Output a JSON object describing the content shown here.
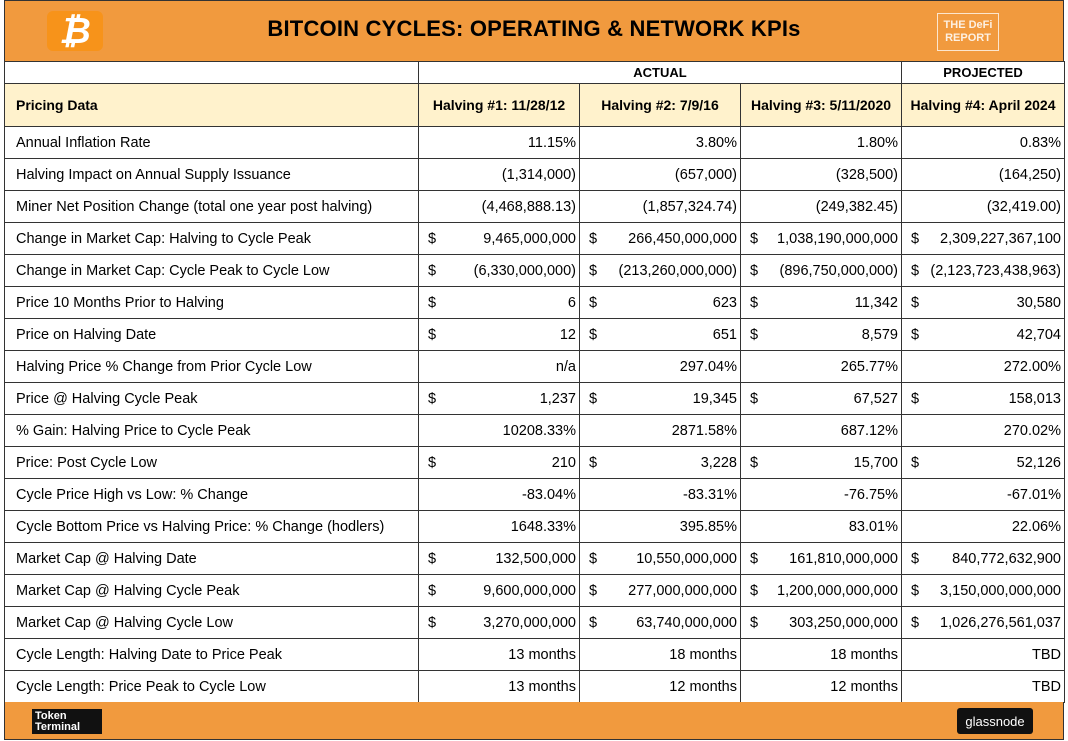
{
  "header": {
    "title": "BITCOIN CYCLES: OPERATING & NETWORK KPIs",
    "brand_logo": "bitcoin-logo",
    "right_logo_text": [
      "THE DeFi",
      "REPORT"
    ]
  },
  "table": {
    "groups": {
      "actual": "ACTUAL",
      "projected": "PROJECTED"
    },
    "columns": {
      "label": "Pricing Data",
      "h1": "Halving #1: 11/28/12",
      "h2": "Halving #2: 7/9/16",
      "h3": "Halving #3: 5/11/2020",
      "h4": "Halving #4: April 2024"
    },
    "rows": [
      {
        "label": "Annual Inflation Rate",
        "v": [
          "11.15%",
          "3.80%",
          "1.80%",
          "0.83%"
        ],
        "cur": [
          "",
          "",
          "",
          ""
        ]
      },
      {
        "label": "Halving Impact on Annual Supply Issuance",
        "v": [
          "(1,314,000)",
          "(657,000)",
          "(328,500)",
          "(164,250)"
        ],
        "cur": [
          "",
          "",
          "",
          ""
        ]
      },
      {
        "label": "Miner Net Position Change (total one year post halving)",
        "v": [
          "(4,468,888.13)",
          "(1,857,324.74)",
          "(249,382.45)",
          "(32,419.00)"
        ],
        "cur": [
          "",
          "",
          "",
          ""
        ]
      },
      {
        "label": "Change in Market Cap: Halving to Cycle Peak",
        "v": [
          "9,465,000,000",
          "266,450,000,000",
          "1,038,190,000,000",
          "2,309,227,367,100"
        ],
        "cur": [
          "$",
          "$",
          "$",
          "$"
        ]
      },
      {
        "label": "Change in Market Cap: Cycle Peak to Cycle Low",
        "v": [
          "(6,330,000,000)",
          "(213,260,000,000)",
          "(896,750,000,000)",
          "(2,123,723,438,963)"
        ],
        "cur": [
          "$",
          "$",
          "$",
          "$"
        ]
      },
      {
        "label": "Price 10 Months Prior to Halving",
        "v": [
          "6",
          "623",
          "11,342",
          "30,580"
        ],
        "cur": [
          "$",
          "$",
          "$",
          "$"
        ]
      },
      {
        "label": "Price on Halving Date",
        "v": [
          "12",
          "651",
          "8,579",
          "42,704"
        ],
        "cur": [
          "$",
          "$",
          "$",
          "$"
        ]
      },
      {
        "label": "Halving Price % Change from Prior Cycle Low",
        "v": [
          "n/a",
          "297.04%",
          "265.77%",
          "272.00%"
        ],
        "cur": [
          "",
          "",
          "",
          ""
        ]
      },
      {
        "label": "Price @ Halving Cycle Peak",
        "v": [
          "1,237",
          "19,345",
          "67,527",
          "158,013"
        ],
        "cur": [
          "$",
          "$",
          "$",
          "$"
        ]
      },
      {
        "label": "% Gain: Halving Price to Cycle Peak",
        "v": [
          "10208.33%",
          "2871.58%",
          "687.12%",
          "270.02%"
        ],
        "cur": [
          "",
          "",
          "",
          ""
        ]
      },
      {
        "label": "Price: Post Cycle Low",
        "v": [
          "210",
          "3,228",
          "15,700",
          "52,126"
        ],
        "cur": [
          "$",
          "$",
          "$",
          "$"
        ]
      },
      {
        "label": "Cycle Price High vs Low: % Change",
        "v": [
          "-83.04%",
          "-83.31%",
          "-76.75%",
          "-67.01%"
        ],
        "cur": [
          "",
          "",
          "",
          ""
        ]
      },
      {
        "label": "Cycle Bottom Price vs Halving Price: % Change (hodlers)",
        "v": [
          "1648.33%",
          "395.85%",
          "83.01%",
          "22.06%"
        ],
        "cur": [
          "",
          "",
          "",
          ""
        ]
      },
      {
        "label": "Market Cap @ Halving Date",
        "v": [
          "132,500,000",
          "10,550,000,000",
          "161,810,000,000",
          "840,772,632,900"
        ],
        "cur": [
          "$",
          "$",
          "$",
          "$"
        ]
      },
      {
        "label": "Market Cap @ Halving Cycle Peak",
        "v": [
          "9,600,000,000",
          "277,000,000,000",
          "1,200,000,000,000",
          "3,150,000,000,000"
        ],
        "cur": [
          "$",
          "$",
          "$",
          "$"
        ]
      },
      {
        "label": "Market Cap @ Halving Cycle Low",
        "v": [
          "3,270,000,000",
          "63,740,000,000",
          "303,250,000,000",
          "1,026,276,561,037"
        ],
        "cur": [
          "$",
          "$",
          "$",
          "$"
        ]
      },
      {
        "label": "Cycle Length: Halving Date to Price Peak",
        "v": [
          "13 months",
          "18 months",
          "18 months",
          "TBD"
        ],
        "cur": [
          "",
          "",
          "",
          ""
        ]
      },
      {
        "label": "Cycle Length: Price Peak to Cycle Low",
        "v": [
          "13 months",
          "12 months",
          "12 months",
          "TBD"
        ],
        "cur": [
          "",
          "",
          "",
          ""
        ]
      }
    ]
  },
  "footer": {
    "left_logo_text": [
      "Token",
      "Terminal"
    ],
    "right_logo_text": "glassnode"
  },
  "colors": {
    "banner": "#f19a3e",
    "header_row": "#fff2cc",
    "bitcoin": "#f7931a"
  }
}
